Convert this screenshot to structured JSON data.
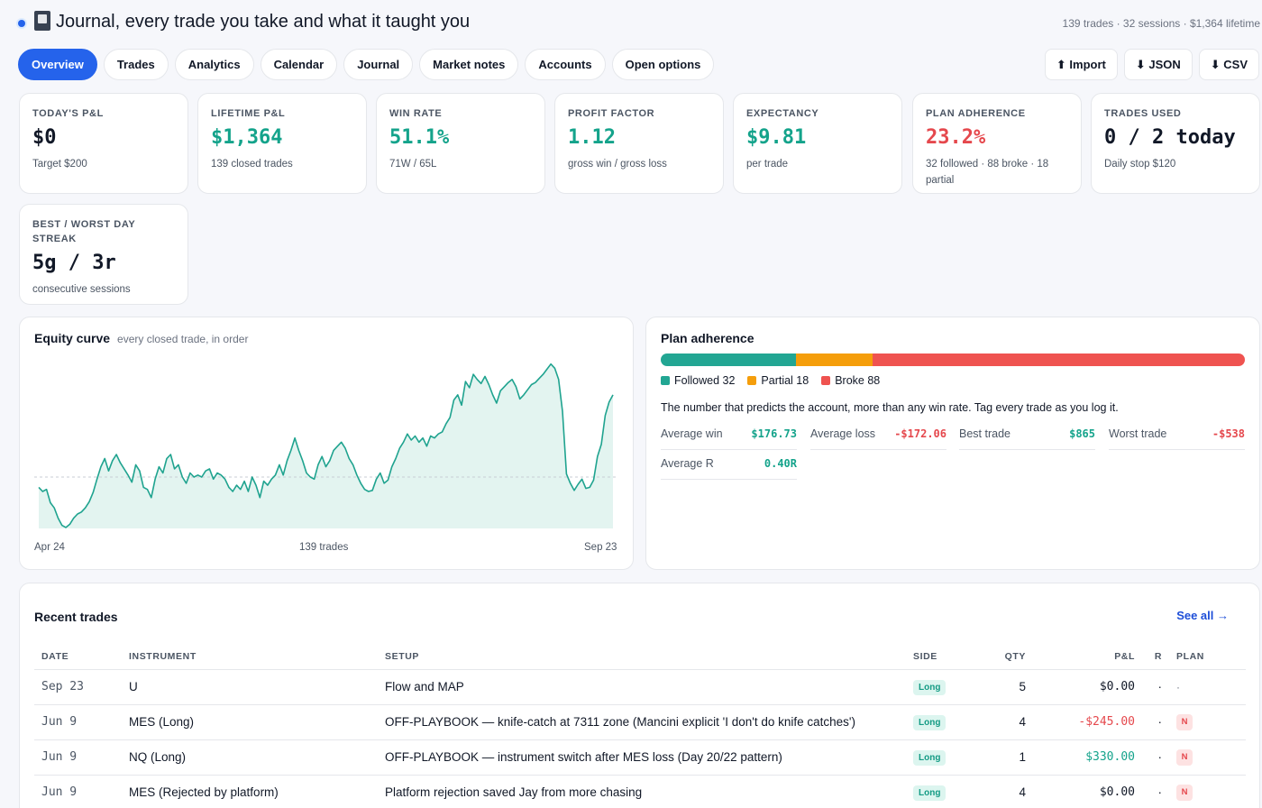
{
  "header": {
    "title": "Journal, every trade you take and what it taught you",
    "summary": "139 trades · 32 sessions · $1,364 lifetime",
    "icon": "notebook-icon"
  },
  "tabs": [
    "Overview",
    "Trades",
    "Analytics",
    "Calendar",
    "Journal",
    "Market notes",
    "Accounts",
    "Open options"
  ],
  "active_tab": "Overview",
  "actions": {
    "import": "⬆ Import",
    "json": "⬇ JSON",
    "csv": "⬇ CSV"
  },
  "stats": [
    {
      "label": "TODAY'S P&L",
      "value": "$0",
      "sub": "Target $200",
      "tone": "dark"
    },
    {
      "label": "LIFETIME P&L",
      "value": "$1,364",
      "sub": "139 closed trades",
      "tone": "green"
    },
    {
      "label": "WIN RATE",
      "value": "51.1%",
      "sub": "71W / 65L",
      "tone": "green"
    },
    {
      "label": "PROFIT FACTOR",
      "value": "1.12",
      "sub": "gross win / gross loss",
      "tone": "green"
    },
    {
      "label": "EXPECTANCY",
      "value": "$9.81",
      "sub": "per trade",
      "tone": "green"
    },
    {
      "label": "PLAN ADHERENCE",
      "value": "23.2%",
      "sub": "32 followed · 88 broke · 18 partial",
      "tone": "red"
    },
    {
      "label": "TRADES USED",
      "value": "0 / 2 today",
      "sub": "Daily stop $120",
      "tone": "dark"
    },
    {
      "label": "BEST / WORST DAY STREAK",
      "value": "5g / 3r",
      "sub": "consecutive sessions",
      "tone": "dark"
    }
  ],
  "equity": {
    "title": "Equity curve",
    "subtitle": "every closed trade, in order",
    "x_start": "Apr 24",
    "x_mid": "139 trades",
    "x_end": "Sep 23"
  },
  "chart_data": {
    "type": "area",
    "title": "Equity curve",
    "x_labels": [
      "Apr 24",
      "Sep 23"
    ],
    "baseline": 0,
    "values": [
      -10,
      -14,
      -12,
      -25,
      -30,
      -40,
      -47,
      -49,
      -46,
      -40,
      -36,
      -34,
      -30,
      -24,
      -15,
      -2,
      10,
      18,
      6,
      16,
      22,
      14,
      8,
      2,
      -5,
      12,
      6,
      -10,
      -12,
      -20,
      -2,
      10,
      4,
      18,
      22,
      8,
      12,
      0,
      -6,
      4,
      0,
      2,
      0,
      6,
      8,
      -2,
      4,
      2,
      -2,
      -10,
      -14,
      -8,
      -12,
      -4,
      -14,
      0,
      -8,
      -20,
      -4,
      -8,
      -2,
      2,
      12,
      2,
      16,
      26,
      38,
      26,
      16,
      4,
      0,
      -2,
      12,
      20,
      10,
      16,
      26,
      30,
      34,
      28,
      18,
      12,
      2,
      -6,
      -12,
      -14,
      -13,
      -2,
      4,
      -6,
      -3,
      10,
      18,
      28,
      34,
      42,
      36,
      40,
      34,
      38,
      30,
      40,
      38,
      42,
      44,
      52,
      58,
      75,
      80,
      70,
      93,
      87,
      100,
      95,
      91,
      98,
      90,
      80,
      72,
      84,
      88,
      92,
      95,
      88,
      76,
      80,
      85,
      90,
      92,
      96,
      100,
      105,
      110,
      106,
      95,
      64,
      3,
      -6,
      -13,
      -7,
      -2,
      -11,
      -10,
      -3,
      20,
      32,
      60,
      73,
      80
    ]
  },
  "plan_adherence": {
    "title": "Plan adherence",
    "followed_label": "Followed 32",
    "partial_label": "Partial 18",
    "broke_label": "Broke 88",
    "followed": 32,
    "partial": 18,
    "broke": 88,
    "colors": {
      "followed": "#22a693",
      "partial": "#f59e0b",
      "broke": "#ef5350"
    },
    "note": "The number that predicts the account, more than any win rate. Tag every trade as you log it.",
    "metrics": [
      {
        "label": "Average win",
        "value": "$176.73",
        "tone": "green"
      },
      {
        "label": "Average loss",
        "value": "-$172.06",
        "tone": "red"
      },
      {
        "label": "Best trade",
        "value": "$865",
        "tone": "green"
      },
      {
        "label": "Worst trade",
        "value": "-$538",
        "tone": "red"
      },
      {
        "label": "Average R",
        "value": "0.40R",
        "tone": "green"
      }
    ]
  },
  "recent": {
    "title": "Recent trades",
    "see_all": "See all →",
    "columns": [
      "DATE",
      "INSTRUMENT",
      "SETUP",
      "SIDE",
      "QTY",
      "P&L",
      "R",
      "PLAN"
    ],
    "rows": [
      {
        "date": "Sep 23",
        "instrument": "U",
        "setup": "Flow and MAP",
        "side": "Long",
        "qty": "5",
        "pl": "$0.00",
        "pl_tone": "dark",
        "r": "·",
        "plan": "·"
      },
      {
        "date": "Jun 9",
        "instrument": "MES (Long)",
        "setup": "OFF-PLAYBOOK — knife-catch at 7311 zone (Mancini explicit 'I don't do knife catches')",
        "side": "Long",
        "qty": "4",
        "pl": "-$245.00",
        "pl_tone": "red",
        "r": "·",
        "plan": "N"
      },
      {
        "date": "Jun 9",
        "instrument": "NQ (Long)",
        "setup": "OFF-PLAYBOOK — instrument switch after MES loss (Day 20/22 pattern)",
        "side": "Long",
        "qty": "1",
        "pl": "$330.00",
        "pl_tone": "green",
        "r": "·",
        "plan": "N"
      },
      {
        "date": "Jun 9",
        "instrument": "MES (Rejected by platform)",
        "setup": "Platform rejection saved Jay from more chasing",
        "side": "Long",
        "qty": "4",
        "pl": "$0.00",
        "pl_tone": "dark",
        "r": "·",
        "plan": "N"
      }
    ]
  }
}
